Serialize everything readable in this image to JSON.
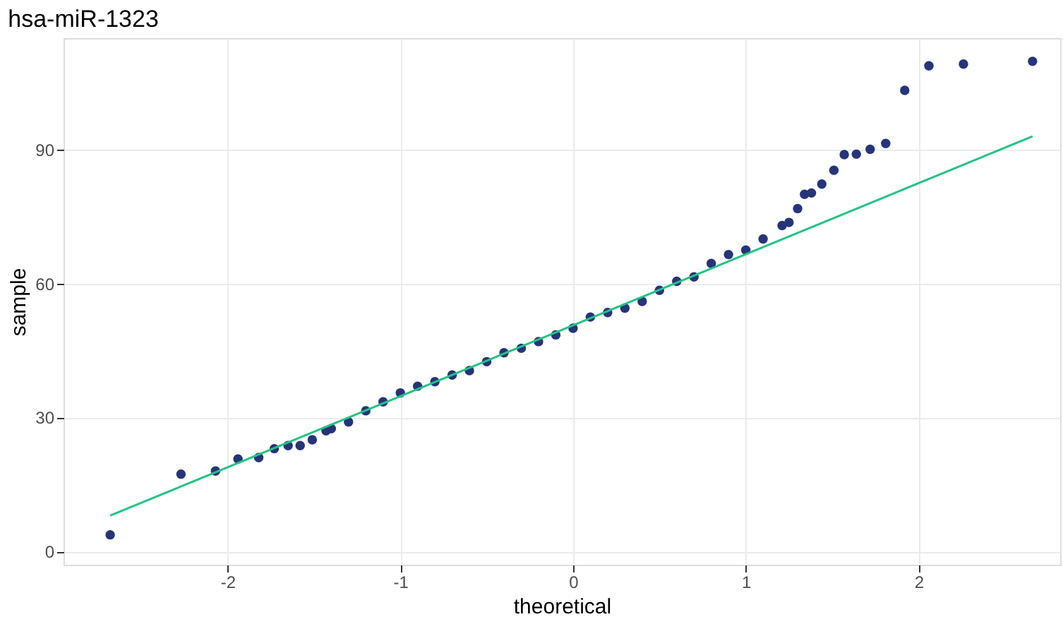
{
  "chart_data": {
    "type": "scatter",
    "title": "hsa-miR-1323",
    "xlabel": "theoretical",
    "ylabel": "sample",
    "xlim": [
      -2.95,
      2.82
    ],
    "ylim": [
      -3,
      115
    ],
    "xticks": [
      -2,
      -1,
      0,
      1,
      2
    ],
    "yticks": [
      0,
      30,
      60,
      90
    ],
    "grid": true,
    "marker": "circle",
    "series": [
      {
        "color": "#26347a",
        "x": [
          -2.68,
          -2.27,
          -2.07,
          -1.94,
          -1.82,
          -1.73,
          -1.65,
          -1.58,
          -1.51,
          -1.43,
          -1.4,
          -1.3,
          -1.2,
          -1.1,
          -1.0,
          -0.9,
          -0.8,
          -0.7,
          -0.6,
          -0.5,
          -0.4,
          -0.3,
          -0.2,
          -0.1,
          0.0,
          0.1,
          0.2,
          0.3,
          0.4,
          0.5,
          0.6,
          0.7,
          0.8,
          0.9,
          1.0,
          1.1,
          1.21,
          1.25,
          1.3,
          1.34,
          1.38,
          1.44,
          1.51,
          1.57,
          1.64,
          1.72,
          1.81,
          1.92,
          2.06,
          2.26,
          2.66
        ],
        "values": [
          3.7,
          17.3,
          18,
          20.7,
          21,
          23,
          23.7,
          23.7,
          25,
          27,
          27.5,
          29,
          31.5,
          33.5,
          35.5,
          37,
          38,
          39.5,
          40.5,
          42.5,
          44.5,
          45.5,
          47,
          48.5,
          50,
          52.5,
          53.5,
          54.5,
          56,
          58.5,
          60.5,
          61.5,
          64.5,
          66.5,
          67.5,
          70,
          73,
          73.7,
          76.8,
          80,
          80.3,
          82.3,
          85.4,
          88.9,
          89,
          90.1,
          91.4,
          103.3,
          108.8,
          109.2,
          109.8
        ]
      },
      {
        "type": "line",
        "color": "#21c483",
        "marker": "none",
        "line_style": "solid",
        "x": [
          -2.68,
          2.66
        ],
        "values": [
          8,
          93
        ]
      }
    ]
  }
}
